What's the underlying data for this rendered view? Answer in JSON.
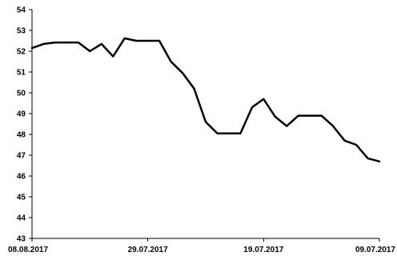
{
  "chart_data": {
    "type": "line",
    "title": "",
    "xlabel": "",
    "ylabel": "",
    "ylim": [
      43,
      54
    ],
    "yticks": [
      "43",
      "44",
      "45",
      "46",
      "47",
      "48",
      "49",
      "50",
      "51",
      "52",
      "53",
      "54"
    ],
    "x_tick_labels": [
      "08.08.2017",
      "29.07.2017",
      "19.07.2017",
      "09.07.2017"
    ],
    "x_tick_index": [
      0,
      10,
      20,
      30
    ],
    "grid": false,
    "legend": "none",
    "line_color": "#000000",
    "series": [
      {
        "values": [
          52.15,
          52.35,
          52.42,
          52.42,
          52.42,
          52.0,
          52.35,
          51.75,
          52.62,
          52.5,
          52.5,
          52.5,
          51.5,
          50.95,
          50.2,
          48.6,
          48.05,
          48.05,
          48.05,
          49.3,
          49.7,
          48.85,
          48.4,
          48.9,
          48.9,
          48.9,
          48.4,
          47.7,
          47.5,
          46.85,
          46.7
        ]
      }
    ]
  }
}
